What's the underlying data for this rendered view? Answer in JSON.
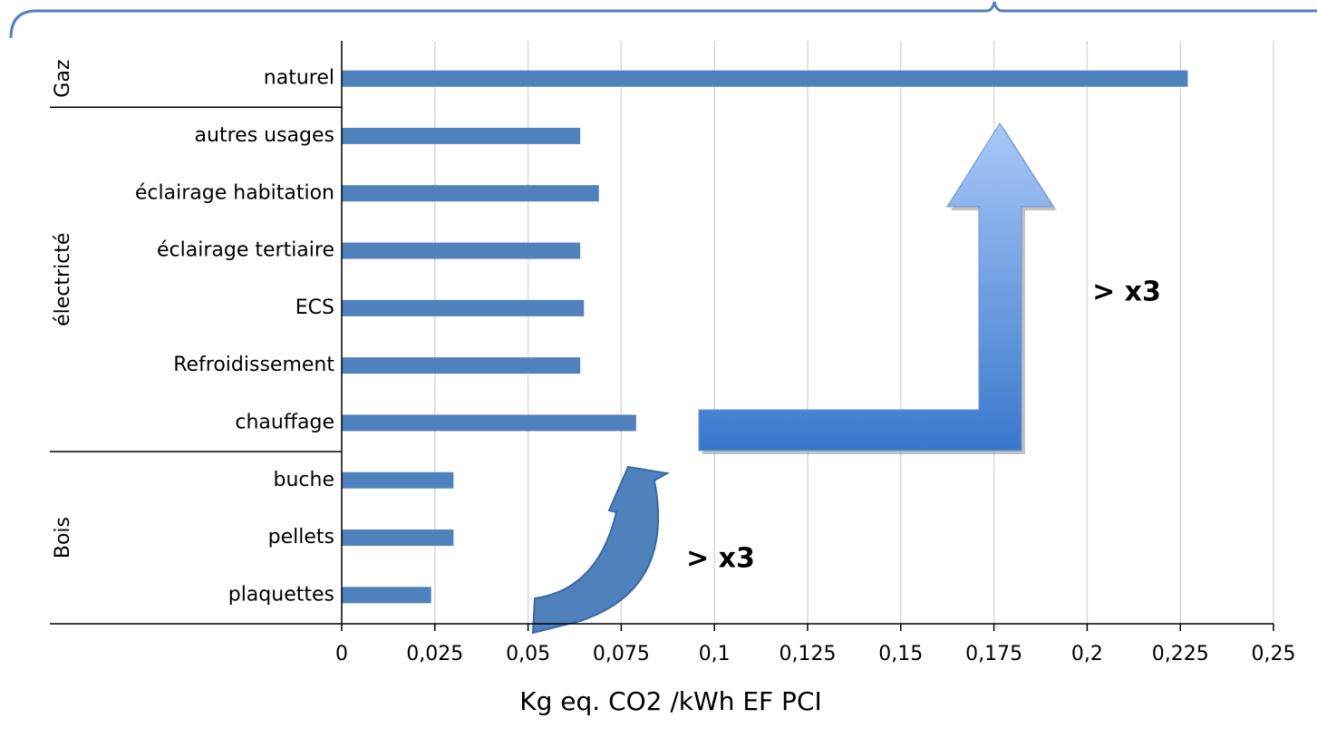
{
  "chart_data": {
    "type": "bar",
    "orientation": "horizontal",
    "xlabel": "Kg eq. CO2 /kWh EF PCI",
    "color": "#4f81bd",
    "groups": [
      {
        "name": "Gaz",
        "categories": [
          "naturel"
        ],
        "values": [
          0.227
        ]
      },
      {
        "name": "électricté",
        "categories": [
          "autres usages",
          "éclairage habitation",
          "éclairage tertiaire",
          "ECS",
          "Refroidissement",
          "chauffage"
        ],
        "values": [
          0.064,
          0.069,
          0.064,
          0.065,
          0.064,
          0.079
        ]
      },
      {
        "name": "Bois",
        "categories": [
          "buche",
          "pellets",
          "plaquettes"
        ],
        "values": [
          0.03,
          0.03,
          0.024
        ]
      }
    ],
    "xlim": [
      0,
      0.25
    ],
    "xticks": [
      0,
      {
        "value": 0.025,
        "label": "0,025"
      },
      {
        "value": 0.05,
        "label": "0,05"
      },
      {
        "value": 0.075,
        "label": "0,075"
      },
      {
        "value": 0.1,
        "label": "0,1"
      },
      {
        "value": 0.125,
        "label": "0,125"
      },
      {
        "value": 0.15,
        "label": "0,15"
      },
      {
        "value": 0.175,
        "label": "0,175"
      },
      {
        "value": 0.2,
        "label": "0,2"
      },
      {
        "value": 0.225,
        "label": "0,225"
      },
      {
        "value": 0.25,
        "label": "0,25"
      }
    ],
    "grid": true,
    "annotations": [
      "> x3",
      "> x3"
    ]
  }
}
